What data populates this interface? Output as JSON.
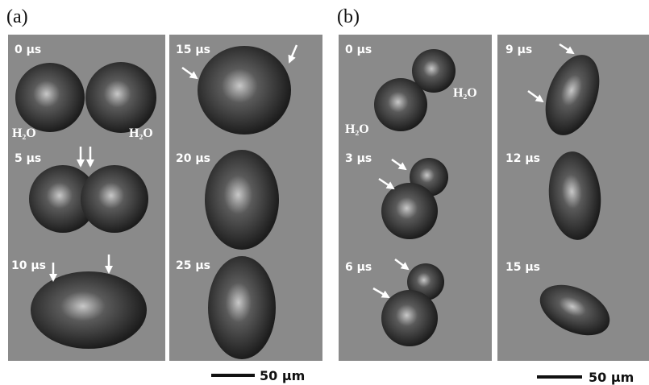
{
  "panels": [
    {
      "label": "(a)",
      "frames": [
        "0 µs",
        "5 µs",
        "10 µs",
        "15 µs",
        "20 µs",
        "25 µs"
      ],
      "water_labels": [
        "H₂O",
        "H₂O"
      ],
      "scale_bar": "50 µm"
    },
    {
      "label": "(b)",
      "frames": [
        "0 µs",
        "3 µs",
        "6 µs",
        "9 µs",
        "12 µs",
        "15 µs"
      ],
      "water_labels": [
        "H₂O",
        "H₂O"
      ],
      "scale_bar": "50 µm"
    }
  ]
}
